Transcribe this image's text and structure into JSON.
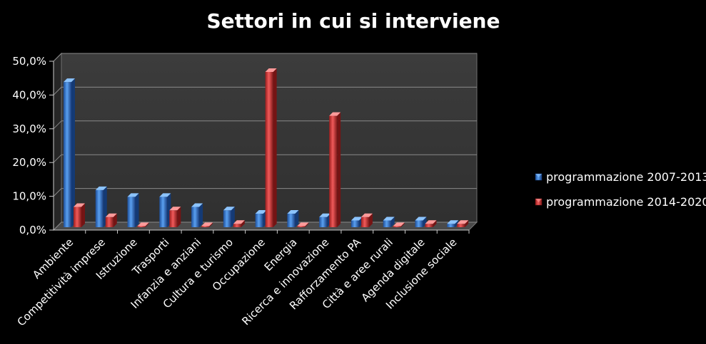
{
  "chart_data": {
    "type": "bar",
    "title": "Settori in cui si interviene",
    "xlabel": "",
    "ylabel": "",
    "ylim": [
      0,
      50
    ],
    "ytick_values": [
      0,
      10,
      20,
      30,
      40,
      50
    ],
    "ytick_labels": [
      "0,0%",
      "10,0%",
      "20,0%",
      "30,0%",
      "40,0%",
      "50,0%"
    ],
    "grid": true,
    "legend_position": "right",
    "categories": [
      "Ambiente",
      "Competitività imprese",
      "Istruzione",
      "Trasporti",
      "Infanzia e anziani",
      "Cultura e turismo",
      "Occupazione",
      "Energia",
      "Ricerca e innovazione",
      "Rafforzamento PA",
      "Città e aree rurali",
      "Agenda digitale",
      "Inclusione sociale"
    ],
    "series": [
      {
        "name": "programmazione 2007-2013",
        "color": "#3a7fd9",
        "values": [
          43,
          11,
          9,
          9,
          6,
          5,
          4,
          4,
          3,
          2,
          2,
          2,
          1
        ]
      },
      {
        "name": "programmazione 2014-2020",
        "color": "#d93a3a",
        "values": [
          6,
          3,
          0,
          5,
          0,
          1,
          46,
          0,
          33,
          3,
          0,
          1,
          1
        ]
      }
    ],
    "colors": {
      "background": "#000000",
      "plot_wall": "#3a3a3a",
      "grid": "#8a8a8a",
      "text": "#ffffff"
    }
  }
}
